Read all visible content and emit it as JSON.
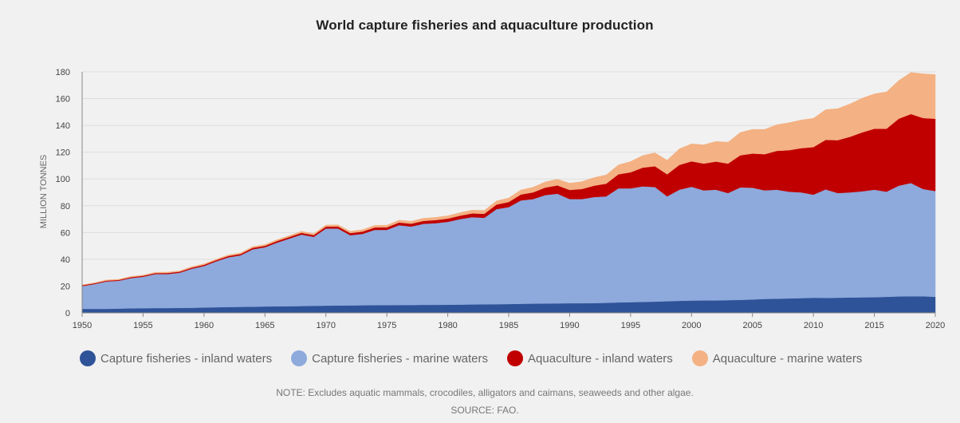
{
  "title": "World capture fisheries and aquaculture production",
  "legend": [
    {
      "label": "Capture fisheries - inland waters",
      "color": "#2e5398"
    },
    {
      "label": "Capture fisheries - marine waters",
      "color": "#8ea9dc"
    },
    {
      "label": "Aquaculture - inland waters",
      "color": "#c00000"
    },
    {
      "label": "Aquaculture - marine waters",
      "color": "#f4b183"
    }
  ],
  "notes": {
    "note": "NOTE: Excludes aquatic mammals, crocodiles, alligators and caimans, seaweeds and other algae.",
    "source": "SOURCE: FAO."
  },
  "chart_data": {
    "type": "area",
    "stacked": true,
    "title": "World capture fisheries and aquaculture production",
    "xlabel": "",
    "ylabel": "MILLION TONNES",
    "xlim": [
      1950,
      2020
    ],
    "ylim": [
      0,
      180
    ],
    "x_ticks": [
      1950,
      1955,
      1960,
      1965,
      1970,
      1975,
      1980,
      1985,
      1990,
      1995,
      2000,
      2005,
      2010,
      2015,
      2020
    ],
    "y_ticks": [
      0,
      20,
      40,
      60,
      80,
      100,
      120,
      140,
      160,
      180
    ],
    "grid": "horizontal",
    "legend_position": "bottom",
    "x": [
      1950,
      1951,
      1952,
      1953,
      1954,
      1955,
      1956,
      1957,
      1958,
      1959,
      1960,
      1961,
      1962,
      1963,
      1964,
      1965,
      1966,
      1967,
      1968,
      1969,
      1970,
      1971,
      1972,
      1973,
      1974,
      1975,
      1976,
      1977,
      1978,
      1979,
      1980,
      1981,
      1982,
      1983,
      1984,
      1985,
      1986,
      1987,
      1988,
      1989,
      1990,
      1991,
      1992,
      1993,
      1994,
      1995,
      1996,
      1997,
      1998,
      1999,
      2000,
      2001,
      2002,
      2003,
      2004,
      2005,
      2006,
      2007,
      2008,
      2009,
      2010,
      2011,
      2012,
      2013,
      2014,
      2015,
      2016,
      2017,
      2018,
      2019,
      2020
    ],
    "series": [
      {
        "name": "Capture fisheries - inland waters",
        "color": "#2e5398",
        "values": [
          3,
          3,
          3,
          3.2,
          3.4,
          3.5,
          3.6,
          3.6,
          3.7,
          3.8,
          4,
          4.2,
          4.4,
          4.5,
          4.6,
          4.8,
          4.9,
          5,
          5.1,
          5.3,
          5.4,
          5.5,
          5.6,
          5.7,
          5.8,
          5.8,
          5.9,
          5.9,
          6,
          6,
          6.1,
          6.2,
          6.3,
          6.4,
          6.5,
          6.6,
          6.8,
          6.9,
          7,
          7.1,
          7.2,
          7.2,
          7.3,
          7.5,
          7.8,
          8,
          8.2,
          8.4,
          8.7,
          9,
          9.2,
          9.3,
          9.3,
          9.5,
          9.7,
          10,
          10.4,
          10.6,
          10.8,
          11,
          11.3,
          11.2,
          11.3,
          11.5,
          11.6,
          11.7,
          12,
          12.3,
          12.4,
          12.4,
          12
        ]
      },
      {
        "name": "Capture fisheries - marine waters",
        "color": "#8ea9dc",
        "values": [
          17,
          18.5,
          20.5,
          20.8,
          22.6,
          23.5,
          25.4,
          25.4,
          26.3,
          29.2,
          31,
          34.3,
          37.1,
          38.5,
          42.9,
          44.2,
          47.6,
          50.5,
          53.4,
          51.5,
          57.6,
          57.5,
          52.4,
          53.3,
          56.2,
          56.2,
          59.6,
          58.6,
          60.5,
          61,
          61.9,
          63.8,
          65.2,
          64.6,
          71,
          72.4,
          77.2,
          78.1,
          81,
          81.9,
          77.8,
          77.8,
          79.2,
          79.5,
          85.2,
          85,
          86.3,
          85.6,
          78.3,
          83,
          85,
          82.2,
          82.7,
          80,
          84,
          83.5,
          81.1,
          81.4,
          79.7,
          79,
          77,
          81,
          78.2,
          78.5,
          79.2,
          80.3,
          78.5,
          82.7,
          84.6,
          80.1,
          79
        ]
      },
      {
        "name": "Aquaculture - inland waters",
        "color": "#c00000",
        "values": [
          0.6,
          0.6,
          0.6,
          0.6,
          0.7,
          0.7,
          0.7,
          0.8,
          0.8,
          0.8,
          0.9,
          0.9,
          1,
          1,
          1.1,
          1.1,
          1.2,
          1.2,
          1.3,
          1.3,
          1.4,
          1.5,
          1.6,
          1.7,
          1.8,
          1.9,
          2,
          2.1,
          2.2,
          2.3,
          2.4,
          2.6,
          2.8,
          3,
          3.4,
          3.8,
          4.4,
          5,
          5.6,
          6.2,
          6.8,
          7.5,
          8.5,
          9.5,
          10.5,
          12,
          14,
          15.5,
          16.5,
          18.5,
          19,
          20,
          21,
          22,
          24,
          25.5,
          27,
          29,
          31,
          33,
          35.5,
          37,
          39.5,
          41.5,
          44,
          45.5,
          47,
          50,
          51.5,
          53,
          54
        ]
      },
      {
        "name": "Aquaculture - marine waters",
        "color": "#f4b183",
        "values": [
          0.4,
          0.4,
          0.5,
          0.5,
          0.5,
          0.5,
          0.6,
          0.6,
          0.6,
          0.7,
          0.7,
          0.7,
          0.8,
          0.8,
          0.9,
          0.9,
          1,
          1,
          1.1,
          1.1,
          1.2,
          1.2,
          1.3,
          1.4,
          1.5,
          1.6,
          1.7,
          1.8,
          1.9,
          2,
          2.1,
          2.2,
          2.4,
          2.5,
          2.7,
          3,
          3.4,
          3.8,
          4.2,
          4.6,
          5,
          5.5,
          6,
          6.5,
          7,
          8,
          9,
          10,
          10.5,
          12,
          13,
          14,
          15,
          16,
          17,
          18,
          18.5,
          19.5,
          20.5,
          21,
          21.5,
          22.5,
          23.5,
          24.5,
          25.5,
          26,
          27.5,
          28.5,
          31,
          33,
          33
        ]
      }
    ]
  }
}
